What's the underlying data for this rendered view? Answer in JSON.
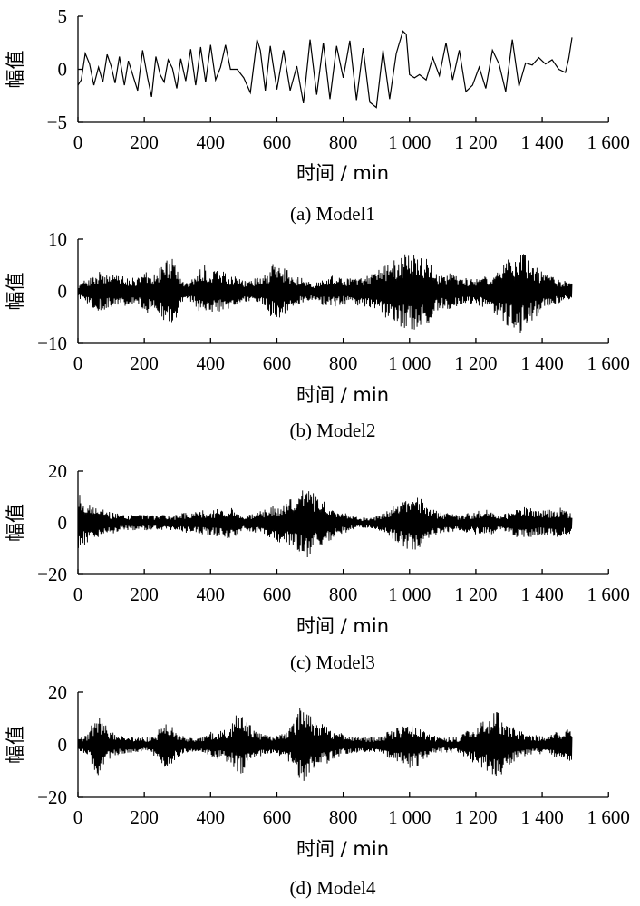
{
  "chart_data": [
    {
      "type": "line",
      "caption": "(a)  Model1",
      "xlabel": "时间 / min",
      "ylabel": "幅值",
      "xlim": [
        0,
        1600
      ],
      "ylim": [
        -5,
        5
      ],
      "x_ticks": [
        0,
        200,
        400,
        600,
        800,
        1000,
        1200,
        1400,
        1600
      ],
      "x_tick_labels": [
        "0",
        "200",
        "400",
        "600",
        "800",
        "1 000",
        "1 200",
        "1 400",
        "1 600"
      ],
      "y_ticks": [
        -5,
        0,
        5
      ],
      "y_tick_labels": [
        "−5",
        "0",
        "5"
      ],
      "color": "#000000",
      "x": [
        0,
        10,
        22,
        35,
        48,
        62,
        75,
        88,
        100,
        112,
        125,
        140,
        152,
        165,
        180,
        195,
        210,
        222,
        235,
        248,
        260,
        272,
        285,
        298,
        310,
        325,
        340,
        355,
        370,
        385,
        400,
        415,
        430,
        445,
        460,
        480,
        500,
        520,
        540,
        550,
        565,
        580,
        600,
        620,
        640,
        660,
        680,
        700,
        720,
        740,
        760,
        780,
        800,
        820,
        840,
        860,
        880,
        900,
        920,
        940,
        960,
        980,
        990,
        1000,
        1015,
        1030,
        1050,
        1070,
        1090,
        1110,
        1130,
        1150,
        1170,
        1190,
        1210,
        1230,
        1250,
        1270,
        1290,
        1310,
        1330,
        1350,
        1370,
        1390,
        1410,
        1430,
        1450,
        1470,
        1480,
        1490
      ],
      "y": [
        -1.5,
        -1.0,
        1.5,
        0.5,
        -1.5,
        0.2,
        -1.2,
        1.4,
        0.3,
        -1.3,
        1.2,
        -1.5,
        0.8,
        -0.5,
        -2.0,
        1.8,
        -0.8,
        -2.6,
        1.2,
        -0.5,
        -1.2,
        0.9,
        0.1,
        -1.8,
        1.0,
        -1.1,
        1.9,
        -1.5,
        2.1,
        -1.2,
        2.3,
        -1.0,
        0.2,
        2.3,
        0.0,
        0.0,
        -0.8,
        -2.2,
        2.8,
        1.8,
        -2.0,
        2.2,
        -1.9,
        1.8,
        -2.0,
        0.3,
        -3.2,
        2.8,
        -2.4,
        2.5,
        -2.8,
        2.2,
        -0.8,
        2.7,
        -2.9,
        2.0,
        -3.1,
        -3.6,
        1.8,
        -2.8,
        1.5,
        3.6,
        3.3,
        -0.5,
        -0.8,
        -0.5,
        -1.0,
        1.1,
        -0.6,
        2.5,
        -1.0,
        1.8,
        -2.1,
        -1.5,
        0.2,
        -1.8,
        1.8,
        0.5,
        -2.1,
        2.8,
        -1.6,
        0.6,
        0.4,
        1.1,
        0.5,
        0.9,
        0.0,
        -0.3,
        1.0,
        3.0
      ]
    },
    {
      "type": "line",
      "caption": "(b)  Model2",
      "xlabel": "时间 / min",
      "ylabel": "幅值",
      "xlim": [
        0,
        1600
      ],
      "ylim": [
        -10,
        10
      ],
      "x_ticks": [
        0,
        200,
        400,
        600,
        800,
        1000,
        1200,
        1400,
        1600
      ],
      "x_tick_labels": [
        "0",
        "200",
        "400",
        "600",
        "800",
        "1 000",
        "1 200",
        "1 400",
        "1 600"
      ],
      "y_ticks": [
        -10,
        0,
        10
      ],
      "y_tick_labels": [
        "−10",
        "0",
        "10"
      ],
      "color": "#000000",
      "x": [
        0,
        30,
        60,
        90,
        120,
        150,
        180,
        200,
        230,
        260,
        290,
        320,
        350,
        380,
        410,
        440,
        470,
        500,
        530,
        560,
        590,
        620,
        650,
        680,
        710,
        740,
        770,
        800,
        830,
        860,
        890,
        920,
        950,
        980,
        1000,
        1030,
        1060,
        1090,
        1120,
        1150,
        1180,
        1210,
        1240,
        1270,
        1300,
        1330,
        1360,
        1390,
        1420,
        1450,
        1480,
        1490
      ],
      "y": [
        -1.5,
        2.5,
        -3.8,
        3.5,
        -3.2,
        2.8,
        -2.5,
        -4.5,
        3.5,
        6.0,
        -6.5,
        -1.5,
        2.5,
        -5.5,
        4.2,
        -3.8,
        3.0,
        -2.0,
        2.5,
        -3.0,
        5.5,
        -4.8,
        3.0,
        -2.5,
        -1.5,
        2.8,
        -3.0,
        2.5,
        -2.8,
        3.0,
        -3.5,
        5.0,
        -5.8,
        7.0,
        -7.5,
        7.2,
        -6.0,
        3.2,
        -3.5,
        3.0,
        -2.5,
        2.8,
        -3.5,
        5.0,
        7.0,
        -8.5,
        6.5,
        -4.5,
        3.0,
        -2.5,
        2.0,
        -1.5
      ]
    },
    {
      "type": "line",
      "caption": "(c)  Model3",
      "xlabel": "时间 / min",
      "ylabel": "幅值",
      "xlim": [
        0,
        1600
      ],
      "ylim": [
        -20,
        20
      ],
      "x_ticks": [
        0,
        200,
        400,
        600,
        800,
        1000,
        1200,
        1400,
        1600
      ],
      "x_tick_labels": [
        "0",
        "200",
        "400",
        "600",
        "800",
        "1 000",
        "1 200",
        "1 400",
        "1 600"
      ],
      "y_ticks": [
        -20,
        0,
        20
      ],
      "y_tick_labels": [
        "−20",
        "0",
        "20"
      ],
      "color": "#000000",
      "x": [
        0,
        20,
        50,
        80,
        110,
        140,
        170,
        200,
        230,
        260,
        290,
        320,
        350,
        380,
        410,
        440,
        470,
        500,
        530,
        560,
        590,
        620,
        650,
        680,
        700,
        730,
        760,
        790,
        820,
        850,
        880,
        910,
        940,
        970,
        1000,
        1030,
        1060,
        1090,
        1120,
        1150,
        1180,
        1210,
        1240,
        1270,
        1300,
        1330,
        1360,
        1390,
        1420,
        1450,
        1480,
        1490
      ],
      "y": [
        -12,
        9,
        -6,
        5,
        -4,
        3,
        -3,
        3,
        -3,
        3,
        -3,
        4,
        -4,
        5,
        -5,
        6,
        -6,
        3,
        -4,
        5,
        -7,
        8,
        -10,
        14,
        -13,
        9,
        -7,
        5,
        -3,
        2,
        -2,
        3,
        -6,
        8,
        11,
        -10,
        6,
        -4,
        4,
        -3,
        4,
        -5,
        5,
        -3,
        4,
        -6,
        6,
        -5,
        5,
        -6,
        5,
        -5
      ]
    },
    {
      "type": "line",
      "caption": "(d)  Model4",
      "xlabel": "时间 / min",
      "ylabel": "幅值",
      "xlim": [
        0,
        1600
      ],
      "ylim": [
        -20,
        20
      ],
      "x_ticks": [
        0,
        200,
        400,
        600,
        800,
        1000,
        1200,
        1400,
        1600
      ],
      "x_tick_labels": [
        "0",
        "200",
        "400",
        "600",
        "800",
        "1 000",
        "1 200",
        "1 400",
        "1 600"
      ],
      "y_ticks": [
        -20,
        0,
        20
      ],
      "y_tick_labels": [
        "−20",
        "0",
        "20"
      ],
      "color": "#000000",
      "x": [
        0,
        30,
        55,
        70,
        90,
        120,
        150,
        180,
        210,
        240,
        260,
        280,
        310,
        340,
        370,
        400,
        430,
        460,
        480,
        500,
        530,
        560,
        590,
        620,
        650,
        670,
        690,
        710,
        740,
        770,
        800,
        830,
        860,
        890,
        920,
        950,
        980,
        1000,
        1030,
        1060,
        1090,
        1120,
        1150,
        1180,
        1210,
        1240,
        1260,
        1280,
        1310,
        1340,
        1370,
        1400,
        1430,
        1460,
        1490
      ],
      "y": [
        -3,
        4,
        12,
        -11,
        6,
        -4,
        3,
        -3,
        3,
        -5,
        9,
        -8,
        4,
        -3,
        3,
        -5,
        6,
        -7,
        12,
        -11,
        6,
        -4,
        3,
        -5,
        8,
        15,
        -13,
        10,
        -8,
        6,
        -4,
        3,
        -3,
        3,
        -4,
        6,
        -7,
        9,
        -8,
        4,
        -3,
        3,
        -3,
        6,
        -8,
        11,
        13,
        -11,
        7,
        -5,
        4,
        -4,
        5,
        -5,
        7
      ]
    }
  ]
}
